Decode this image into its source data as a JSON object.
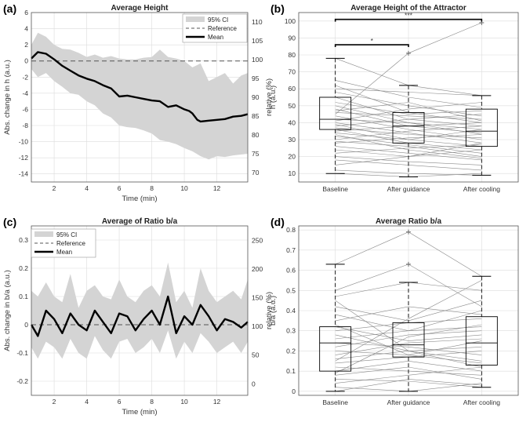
{
  "chart_data": [
    {
      "id": "a",
      "panel_label": "(a)",
      "type": "line",
      "title": "Average Height",
      "xlabel": "Time (min)",
      "ylabel": "Abs. change in h (a.u.)",
      "ylabel_right": "relative (%)",
      "xlim": [
        0.6,
        13.9
      ],
      "ylim": [
        -15,
        6
      ],
      "xticks": [
        "2",
        "4",
        "6",
        "8",
        "10",
        "12"
      ],
      "yticks": [
        "6",
        "4",
        "2",
        "0",
        "-2",
        "-4",
        "-6",
        "-8",
        "-10",
        "-12",
        "-14"
      ],
      "yticks_right": [
        "110",
        "105",
        "100",
        "95",
        "90",
        "85",
        "80",
        "75",
        "70"
      ],
      "legend": [
        "95% CI",
        "Reference",
        "Mean"
      ],
      "reference": 0,
      "series": [
        {
          "name": "Mean",
          "x": [
            0.6,
            1.0,
            1.5,
            2.0,
            2.5,
            3.0,
            3.5,
            4.0,
            4.5,
            5.0,
            5.5,
            6.0,
            6.5,
            7.0,
            7.5,
            8.0,
            8.5,
            9.0,
            9.5,
            10.0,
            10.3,
            10.5,
            10.8,
            11.0,
            11.5,
            12.0,
            12.5,
            13.0,
            13.5,
            13.9
          ],
          "y": [
            0.3,
            1.1,
            0.9,
            0.2,
            -0.6,
            -1.2,
            -1.8,
            -2.2,
            -2.5,
            -3.0,
            -3.4,
            -4.4,
            -4.3,
            -4.5,
            -4.7,
            -4.9,
            -5.0,
            -5.7,
            -5.5,
            -6.0,
            -6.2,
            -6.5,
            -7.3,
            -7.5,
            -7.4,
            -7.3,
            -7.2,
            -6.9,
            -6.8,
            -6.6
          ]
        },
        {
          "name": "95% CI upper",
          "x": [
            0.6,
            1.0,
            1.5,
            2.0,
            2.5,
            3.0,
            3.5,
            4.0,
            4.5,
            5.0,
            5.5,
            6.0,
            6.5,
            7.0,
            7.5,
            8.0,
            8.5,
            9.0,
            9.5,
            10.0,
            10.5,
            11.0,
            11.5,
            12.0,
            12.5,
            13.0,
            13.5,
            13.9
          ],
          "y": [
            2.0,
            3.5,
            3.0,
            2.0,
            1.5,
            1.4,
            1.0,
            0.5,
            0.8,
            0.4,
            0.6,
            0.3,
            0.2,
            0.2,
            0.4,
            0.5,
            1.4,
            0.5,
            0.3,
            0.0,
            -0.8,
            -0.3,
            -2.5,
            -2.0,
            -1.5,
            -2.8,
            -1.8,
            -1.5
          ]
        },
        {
          "name": "95% CI lower",
          "x": [
            0.6,
            1.0,
            1.5,
            2.0,
            2.5,
            3.0,
            3.5,
            4.0,
            4.5,
            5.0,
            5.5,
            6.0,
            6.5,
            7.0,
            7.5,
            8.0,
            8.5,
            9.0,
            9.5,
            10.0,
            10.5,
            11.0,
            11.5,
            12.0,
            12.5,
            13.0,
            13.5,
            13.9
          ],
          "y": [
            -1.0,
            -2.0,
            -1.5,
            -2.5,
            -3.2,
            -4.0,
            -4.2,
            -5.0,
            -5.5,
            -6.5,
            -7.0,
            -8.0,
            -8.2,
            -8.3,
            -8.6,
            -9.0,
            -9.8,
            -10.0,
            -10.3,
            -10.8,
            -11.2,
            -11.8,
            -12.2,
            -11.8,
            -11.9,
            -11.7,
            -11.6,
            -11.5
          ]
        }
      ]
    },
    {
      "id": "b",
      "panel_label": "(b)",
      "type": "box",
      "title": "Average Height of the Attractor",
      "ylabel": "h (a.u.)",
      "ylim": [
        5,
        105
      ],
      "categories": [
        "Baseline",
        "After guidance",
        "After cooling"
      ],
      "yticks": [
        "100",
        "90",
        "80",
        "70",
        "60",
        "50",
        "40",
        "30",
        "20",
        "10"
      ],
      "boxes": [
        {
          "whisker_low": 10,
          "q1": 36,
          "median": 42,
          "q3": 55,
          "whisker_high": 78,
          "outliers": []
        },
        {
          "whisker_low": 8,
          "q1": 28,
          "median": 38,
          "q3": 46,
          "whisker_high": 62,
          "outliers": [
            81
          ]
        },
        {
          "whisker_low": 9,
          "q1": 26,
          "median": 35,
          "q3": 48,
          "whisker_high": 56,
          "outliers": [
            99
          ]
        }
      ],
      "paired_lines": [
        [
          78,
          62,
          56
        ],
        [
          65,
          55,
          49
        ],
        [
          62,
          46,
          40
        ],
        [
          58,
          50,
          44
        ],
        [
          55,
          42,
          38
        ],
        [
          52,
          45,
          47
        ],
        [
          50,
          40,
          36
        ],
        [
          48,
          38,
          34
        ],
        [
          46,
          44,
          42
        ],
        [
          44,
          36,
          30
        ],
        [
          42,
          40,
          33
        ],
        [
          41,
          48,
          52
        ],
        [
          40,
          34,
          28
        ],
        [
          39,
          30,
          36
        ],
        [
          38,
          42,
          45
        ],
        [
          37,
          33,
          31
        ],
        [
          36,
          28,
          24
        ],
        [
          35,
          38,
          40
        ],
        [
          34,
          30,
          26
        ],
        [
          32,
          27,
          22
        ],
        [
          30,
          35,
          38
        ],
        [
          29,
          26,
          20
        ],
        [
          28,
          31,
          33
        ],
        [
          26,
          22,
          18
        ],
        [
          24,
          20,
          24
        ],
        [
          22,
          25,
          27
        ],
        [
          20,
          17,
          15
        ],
        [
          18,
          15,
          12
        ],
        [
          15,
          20,
          28
        ],
        [
          12,
          10,
          9
        ],
        [
          10,
          8,
          10
        ],
        [
          45,
          81,
          99
        ],
        [
          60,
          58,
          56
        ],
        [
          47,
          52,
          41
        ],
        [
          33,
          24,
          19
        ]
      ],
      "significance": [
        {
          "from": "Baseline",
          "to": "After guidance",
          "label": "*",
          "y": 86
        },
        {
          "from": "Baseline",
          "to": "After cooling",
          "label": "***",
          "y": 101
        }
      ]
    },
    {
      "id": "c",
      "panel_label": "(c)",
      "type": "line",
      "title": "Average of Ratio b/a",
      "xlabel": "Time (min)",
      "ylabel": "Abs. change in b/a (a.u.)",
      "ylabel_right": "relative (%)",
      "xlim": [
        0.6,
        13.9
      ],
      "ylim": [
        -0.25,
        0.35
      ],
      "xticks": [
        "2",
        "4",
        "6",
        "8",
        "10",
        "12"
      ],
      "yticks": [
        "0.3",
        "0.2",
        "0.1",
        "0",
        "-0.1",
        "-0.2"
      ],
      "yticks_right": [
        "250",
        "200",
        "150",
        "100",
        "50",
        "0"
      ],
      "legend": [
        "95% CI",
        "Reference",
        "Mean"
      ],
      "reference": 0,
      "series": [
        {
          "name": "Mean",
          "x": [
            0.6,
            1.0,
            1.5,
            2.0,
            2.5,
            3.0,
            3.5,
            4.0,
            4.5,
            5.0,
            5.5,
            6.0,
            6.5,
            7.0,
            7.5,
            8.0,
            8.5,
            9.0,
            9.5,
            10.0,
            10.5,
            11.0,
            11.5,
            12.0,
            12.5,
            13.0,
            13.5,
            13.9
          ],
          "y": [
            0.0,
            -0.04,
            0.05,
            0.02,
            -0.03,
            0.04,
            0.0,
            -0.02,
            0.05,
            0.01,
            -0.03,
            0.04,
            0.03,
            -0.02,
            0.02,
            0.05,
            0.0,
            0.1,
            -0.03,
            0.03,
            0.0,
            0.07,
            0.03,
            -0.02,
            0.02,
            0.01,
            -0.01,
            0.01
          ]
        },
        {
          "name": "95% CI upper",
          "x": [
            0.6,
            1.0,
            1.5,
            2.0,
            2.5,
            3.0,
            3.5,
            4.0,
            4.5,
            5.0,
            5.5,
            6.0,
            6.5,
            7.0,
            7.5,
            8.0,
            8.5,
            9.0,
            9.5,
            10.0,
            10.5,
            11.0,
            11.5,
            12.0,
            12.5,
            13.0,
            13.5,
            13.9
          ],
          "y": [
            0.12,
            0.1,
            0.15,
            0.1,
            0.08,
            0.18,
            0.06,
            0.12,
            0.14,
            0.1,
            0.09,
            0.16,
            0.1,
            0.08,
            0.12,
            0.14,
            0.1,
            0.22,
            0.08,
            0.12,
            0.06,
            0.2,
            0.12,
            0.08,
            0.1,
            0.12,
            0.09,
            0.16
          ]
        },
        {
          "name": "95% CI lower",
          "x": [
            0.6,
            1.0,
            1.5,
            2.0,
            2.5,
            3.0,
            3.5,
            4.0,
            4.5,
            5.0,
            5.5,
            6.0,
            6.5,
            7.0,
            7.5,
            8.0,
            8.5,
            9.0,
            9.5,
            10.0,
            10.5,
            11.0,
            11.5,
            12.0,
            12.5,
            13.0,
            13.5,
            13.9
          ],
          "y": [
            -0.08,
            -0.12,
            -0.06,
            -0.08,
            -0.12,
            -0.05,
            -0.1,
            -0.12,
            -0.04,
            -0.09,
            -0.12,
            -0.06,
            -0.05,
            -0.1,
            -0.08,
            -0.05,
            -0.1,
            -0.02,
            -0.12,
            -0.06,
            -0.1,
            -0.03,
            -0.06,
            -0.1,
            -0.08,
            -0.06,
            -0.1,
            -0.06
          ]
        }
      ]
    },
    {
      "id": "d",
      "panel_label": "(d)",
      "type": "box",
      "title": "Average Ratio b/a",
      "ylabel": "b/a (a.u.)",
      "ylim": [
        -0.02,
        0.82
      ],
      "categories": [
        "Baseline",
        "After guidance",
        "After cooling"
      ],
      "yticks": [
        "0.8",
        "0.7",
        "0.6",
        "0.5",
        "0.4",
        "0.3",
        "0.2",
        "0.1",
        "0"
      ],
      "boxes": [
        {
          "whisker_low": 0.0,
          "q1": 0.1,
          "median": 0.24,
          "q3": 0.32,
          "whisker_high": 0.63,
          "outliers": []
        },
        {
          "whisker_low": 0.0,
          "q1": 0.17,
          "median": 0.23,
          "q3": 0.34,
          "whisker_high": 0.54,
          "outliers": [
            0.63,
            0.79
          ]
        },
        {
          "whisker_low": 0.02,
          "q1": 0.13,
          "median": 0.24,
          "q3": 0.37,
          "whisker_high": 0.57,
          "outliers": []
        }
      ],
      "paired_lines": [
        [
          0.63,
          0.79,
          0.57
        ],
        [
          0.5,
          0.63,
          0.42
        ],
        [
          0.47,
          0.54,
          0.5
        ],
        [
          0.42,
          0.35,
          0.45
        ],
        [
          0.38,
          0.3,
          0.32
        ],
        [
          0.35,
          0.42,
          0.38
        ],
        [
          0.32,
          0.25,
          0.28
        ],
        [
          0.3,
          0.34,
          0.36
        ],
        [
          0.28,
          0.2,
          0.22
        ],
        [
          0.26,
          0.3,
          0.4
        ],
        [
          0.24,
          0.22,
          0.18
        ],
        [
          0.22,
          0.28,
          0.3
        ],
        [
          0.2,
          0.18,
          0.14
        ],
        [
          0.18,
          0.24,
          0.26
        ],
        [
          0.16,
          0.2,
          0.12
        ],
        [
          0.14,
          0.17,
          0.2
        ],
        [
          0.12,
          0.1,
          0.08
        ],
        [
          0.1,
          0.15,
          0.1
        ],
        [
          0.08,
          0.12,
          0.06
        ],
        [
          0.06,
          0.05,
          0.02
        ],
        [
          0.04,
          0.08,
          0.12
        ],
        [
          0.02,
          0.0,
          0.04
        ],
        [
          0.0,
          0.06,
          0.03
        ],
        [
          0.45,
          0.2,
          0.15
        ],
        [
          0.15,
          0.36,
          0.55
        ],
        [
          0.33,
          0.18,
          0.25
        ],
        [
          0.09,
          0.27,
          0.33
        ]
      ]
    }
  ]
}
